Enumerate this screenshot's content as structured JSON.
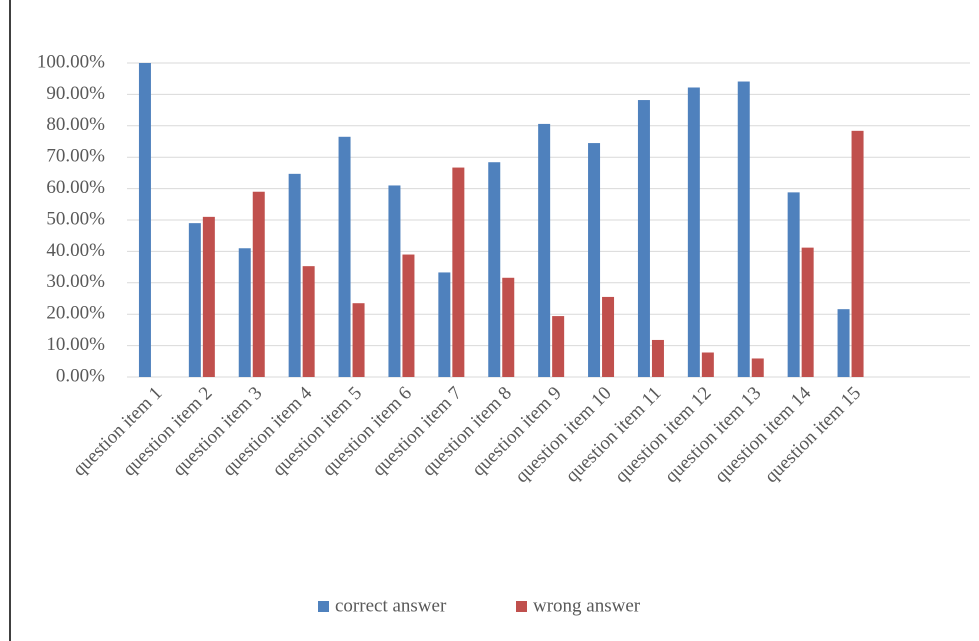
{
  "chart_data": {
    "type": "bar",
    "categories": [
      "question item 1",
      "question item 2",
      "question item 3",
      "question item 4",
      "question item 5",
      "question item 6",
      "question item 7",
      "question item 8",
      "question item 9",
      "question item 10",
      "question item 11",
      "question item 12",
      "question item 13",
      "question item 14",
      "question item 15"
    ],
    "series": [
      {
        "name": "correct answer",
        "color": "#4f81bd",
        "values": [
          100,
          49,
          41,
          64.7,
          76.5,
          61,
          33.3,
          68.4,
          80.6,
          74.5,
          88.2,
          92.2,
          94.1,
          58.8,
          21.6
        ]
      },
      {
        "name": "wrong answer",
        "color": "#c0504d",
        "values": [
          0,
          51,
          59,
          35.3,
          23.5,
          39,
          66.7,
          31.6,
          19.4,
          25.5,
          11.8,
          7.8,
          5.9,
          41.2,
          78.4
        ]
      }
    ],
    "ylim": [
      0,
      100
    ],
    "yticks": [
      {
        "value": 0,
        "label": "0.00%"
      },
      {
        "value": 10,
        "label": "10.00%"
      },
      {
        "value": 20,
        "label": "20.00%"
      },
      {
        "value": 30,
        "label": "30.00%"
      },
      {
        "value": 40,
        "label": "40.00%"
      },
      {
        "value": 50,
        "label": "50.00%"
      },
      {
        "value": 60,
        "label": "60.00%"
      },
      {
        "value": 70,
        "label": "70.00%"
      },
      {
        "value": 80,
        "label": "80.00%"
      },
      {
        "value": 90,
        "label": "90.00%"
      },
      {
        "value": 100,
        "label": "100.00%"
      }
    ],
    "grid": true,
    "legend": "bottom"
  }
}
